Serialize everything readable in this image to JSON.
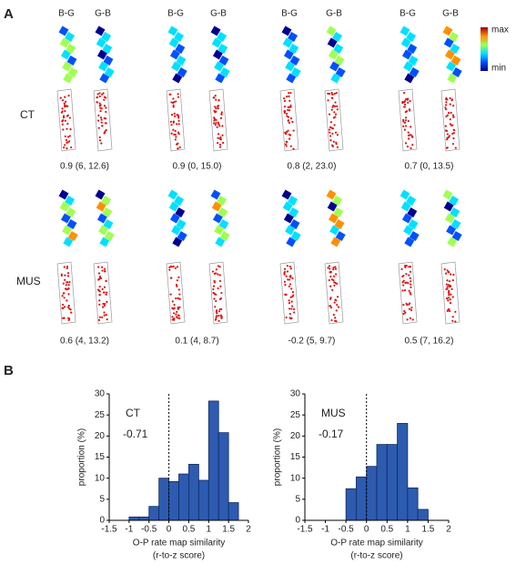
{
  "panel_labels": [
    "A",
    "B"
  ],
  "panel_a": {
    "column_labels": [
      "B-G",
      "G-B"
    ],
    "colorbar": {
      "max": "max",
      "min": "min"
    },
    "rows": [
      {
        "label": "CT",
        "cells": [
          "0.9 (6, 12.6)",
          "0.9 (0, 15.0)",
          "0.8 (2, 23.0)",
          "0.7 (0, 13.5)"
        ]
      },
      {
        "label": "MUS",
        "cells": [
          "0.6 (4, 13.2)",
          "0.1 (4, 8.7)",
          "-0.2 (5, 9.7)",
          "0.5 (7, 16.2)"
        ]
      }
    ]
  },
  "chart_data": [
    {
      "type": "histogram",
      "annotation": "CT",
      "statistic": "-0.71",
      "x_label": "O-P rate map similarity",
      "x_sublabel": "(r-to-z score)",
      "y_label": "proportion (%)",
      "bins": [
        -1,
        -0.75,
        -0.5,
        -0.25,
        0,
        0.25,
        0.5,
        0.75,
        1,
        1.25,
        1.5,
        1.75
      ],
      "values": [
        0.8,
        0.8,
        3.3,
        10,
        9.2,
        11,
        13.3,
        9.5,
        28.3,
        20.8,
        4.2
      ],
      "color": "#2d5bb0",
      "reference_line": 0,
      "xlim": [
        -1.5,
        2
      ],
      "xticks": [
        -1.5,
        -1,
        -0.5,
        0,
        0.5,
        1,
        1.5,
        2
      ],
      "ylim": [
        0,
        30
      ],
      "yticks": [
        0,
        5,
        10,
        15,
        20,
        25,
        30
      ]
    },
    {
      "type": "histogram",
      "annotation": "MUS",
      "statistic": "-0.17",
      "x_label": "O-P rate map similarity",
      "x_sublabel": "(r-to-z score)",
      "y_label": "proportion (%)",
      "bins": [
        -0.5,
        -0.25,
        0,
        0.25,
        0.5,
        0.75,
        1,
        1.25,
        1.5
      ],
      "values": [
        7.5,
        10.3,
        12.8,
        18,
        18,
        23,
        7.7,
        2.6
      ],
      "color": "#2d5bb0",
      "reference_line": 0,
      "xlim": [
        -1.5,
        2
      ],
      "xticks": [
        -1.5,
        -1,
        -0.5,
        0,
        0.5,
        1,
        1.5,
        2
      ],
      "ylim": [
        0,
        30
      ],
      "yticks": [
        0,
        5,
        10,
        15,
        20,
        25,
        30
      ]
    }
  ]
}
